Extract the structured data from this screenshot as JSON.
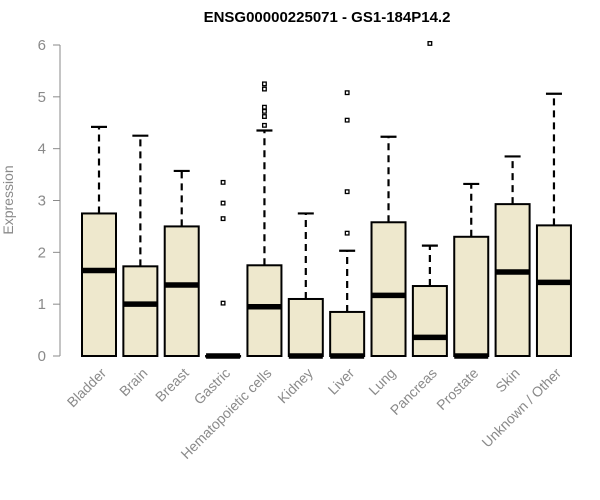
{
  "chart_data": {
    "type": "boxplot",
    "title": "ENSG00000225071 - GS1-184P14.2",
    "xlabel": "",
    "ylabel": "Expression",
    "ylim": [
      0,
      6
    ],
    "yticks": [
      0,
      1,
      2,
      3,
      4,
      5,
      6
    ],
    "grid": false,
    "legend": "none",
    "colors": {
      "box_fill": "#EEE8CD",
      "box_stroke": "#000000",
      "median": "#000000",
      "axis": "#8a8a8a",
      "tick_label": "#8a8a8a"
    },
    "categories": [
      "Bladder",
      "Brain",
      "Breast",
      "Gastric",
      "Hematopoietic cells",
      "Kidney",
      "Liver",
      "Lung",
      "Pancreas",
      "Prostate",
      "Skin",
      "Unknown / Other"
    ],
    "boxes": [
      {
        "category": "Bladder",
        "q1": 0,
        "median": 1.65,
        "q3": 2.75,
        "whisker_low": 0,
        "whisker_high": 4.42,
        "outliers": []
      },
      {
        "category": "Brain",
        "q1": 0,
        "median": 1.0,
        "q3": 1.73,
        "whisker_low": 0,
        "whisker_high": 4.25,
        "outliers": []
      },
      {
        "category": "Breast",
        "q1": 0,
        "median": 1.37,
        "q3": 2.5,
        "whisker_low": 0,
        "whisker_high": 3.57,
        "outliers": []
      },
      {
        "category": "Gastric",
        "q1": 0,
        "median": 0.0,
        "q3": 0.0,
        "whisker_low": 0,
        "whisker_high": 0,
        "outliers": [
          1.02,
          2.65,
          2.95,
          3.35
        ]
      },
      {
        "category": "Hematopoietic cells",
        "q1": 0,
        "median": 0.95,
        "q3": 1.75,
        "whisker_low": 0,
        "whisker_high": 4.35,
        "outliers": [
          4.45,
          4.62,
          4.72,
          4.8,
          5.15,
          5.25
        ]
      },
      {
        "category": "Kidney",
        "q1": 0,
        "median": 0.0,
        "q3": 1.1,
        "whisker_low": 0,
        "whisker_high": 2.75,
        "outliers": []
      },
      {
        "category": "Liver",
        "q1": 0,
        "median": 0.0,
        "q3": 0.85,
        "whisker_low": 0,
        "whisker_high": 2.03,
        "outliers": [
          2.37,
          3.17,
          4.55,
          5.08
        ]
      },
      {
        "category": "Lung",
        "q1": 0,
        "median": 1.17,
        "q3": 2.58,
        "whisker_low": 0,
        "whisker_high": 4.23,
        "outliers": []
      },
      {
        "category": "Pancreas",
        "q1": 0,
        "median": 0.36,
        "q3": 1.35,
        "whisker_low": 0,
        "whisker_high": 2.13,
        "outliers": [
          6.03
        ]
      },
      {
        "category": "Prostate",
        "q1": 0,
        "median": 0.0,
        "q3": 2.3,
        "whisker_low": 0,
        "whisker_high": 3.32,
        "outliers": []
      },
      {
        "category": "Skin",
        "q1": 0,
        "median": 1.62,
        "q3": 2.93,
        "whisker_low": 0,
        "whisker_high": 3.85,
        "outliers": []
      },
      {
        "category": "Unknown / Other",
        "q1": 0,
        "median": 1.42,
        "q3": 2.52,
        "whisker_low": 0,
        "whisker_high": 5.06,
        "outliers": []
      }
    ]
  }
}
